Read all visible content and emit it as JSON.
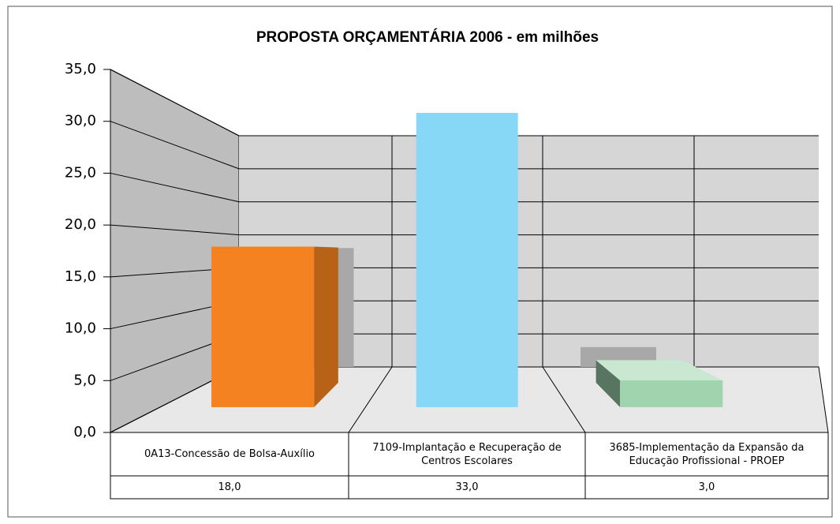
{
  "chart_data": {
    "type": "bar3d",
    "title": "PROPOSTA ORÇAMENTÁRIA 2006 - em milhões",
    "categories": [
      "0A13-Concessão de Bolsa-Auxílio",
      "7109-Implantação e Recuperação de Centros Escolares",
      "3685-Implementação da Expansão da Educação Profissional - PROEP"
    ],
    "values": [
      18,
      33,
      3
    ],
    "value_labels": [
      "18,0",
      "33,0",
      "3,0"
    ],
    "colors": [
      "#f58220",
      "#87d7f7",
      "#9fd4ae"
    ],
    "ylim": [
      0,
      35
    ],
    "yticks": [
      {
        "value": 0,
        "label": "0,0"
      },
      {
        "value": 5,
        "label": "5,0"
      },
      {
        "value": 10,
        "label": "10,0"
      },
      {
        "value": 15,
        "label": "15,0"
      },
      {
        "value": 20,
        "label": "20,0"
      },
      {
        "value": 25,
        "label": "25,0"
      },
      {
        "value": 30,
        "label": "30,0"
      },
      {
        "value": 35,
        "label": "35,0"
      }
    ],
    "grid": true
  }
}
